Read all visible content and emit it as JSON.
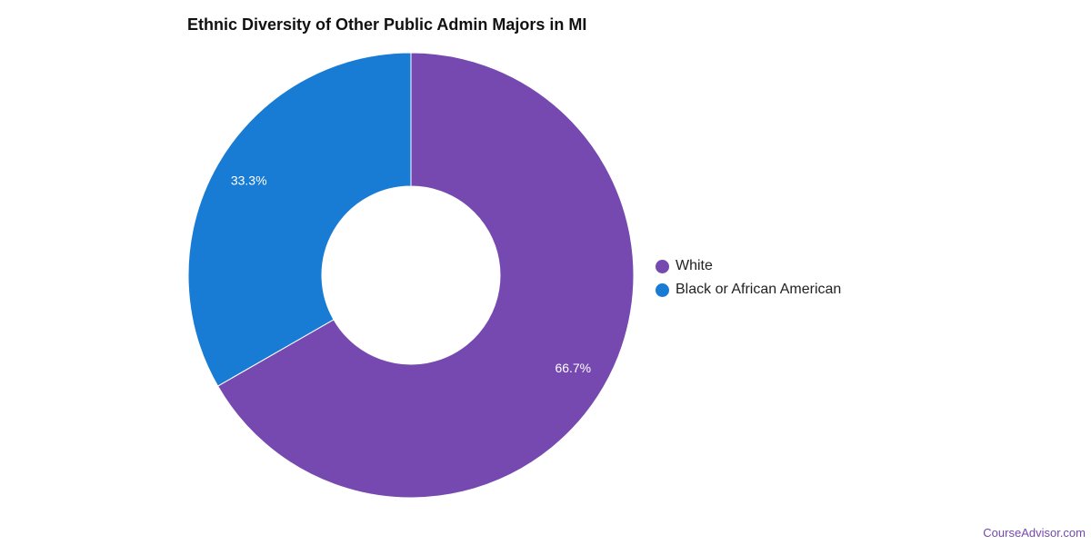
{
  "chart_data": {
    "type": "pie",
    "variant": "donut",
    "title": "Ethnic Diversity of Other Public Admin Majors in MI",
    "slices": [
      {
        "label": "White",
        "value": 66.7,
        "display": "66.7%",
        "color": "#7549af"
      },
      {
        "label": "Black or African American",
        "value": 33.3,
        "display": "33.3%",
        "color": "#197cd4"
      }
    ],
    "legend_position": "right"
  },
  "footer": {
    "brand": "CourseAdvisor.com"
  }
}
